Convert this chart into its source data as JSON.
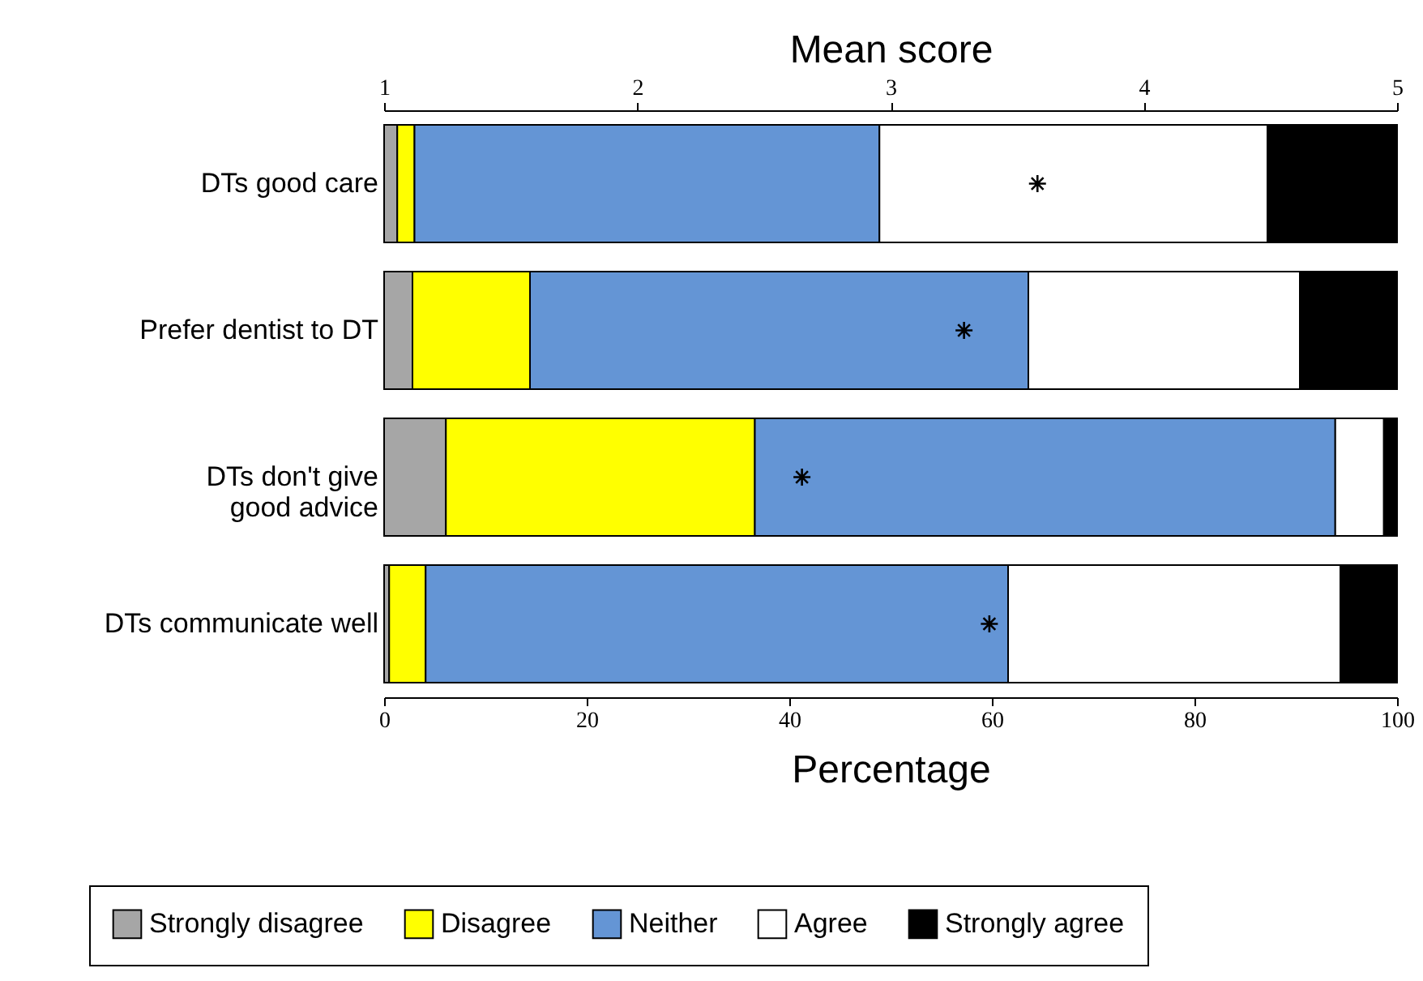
{
  "chart_data": {
    "type": "bar",
    "orientation": "horizontal",
    "stacked": true,
    "categories": [
      "DTs good care",
      "Prefer dentist to DT",
      "DTs don't give good advice",
      "DTs communicate well"
    ],
    "series": [
      {
        "name": "Strongly disagree",
        "color": "#a6a6a6",
        "values": [
          1.3,
          2.8,
          6.1,
          0.5
        ]
      },
      {
        "name": "Disagree",
        "color": "#ffff00",
        "values": [
          1.7,
          11.6,
          30.5,
          3.6
        ]
      },
      {
        "name": "Neither",
        "color": "#6495d5",
        "values": [
          45.9,
          49.2,
          57.3,
          57.5
        ]
      },
      {
        "name": "Agree",
        "color": "#ffffff",
        "values": [
          38.3,
          26.8,
          4.8,
          32.8
        ]
      },
      {
        "name": "Strongly agree",
        "color": "#000000",
        "values": [
          12.8,
          9.6,
          1.3,
          5.6
        ]
      },
      {
        "type": "scatter",
        "axis": "x2",
        "color": "#000000",
        "marker": "cross",
        "values": [
          3.58,
          3.29,
          2.65,
          3.39
        ]
      }
    ],
    "xlabel": "Percentage",
    "xlim": [
      0,
      100
    ],
    "xticks": [
      0,
      20,
      40,
      60,
      80,
      100
    ],
    "x2label": "Mean score",
    "x2lim": [
      1,
      5
    ],
    "x2ticks": [
      1,
      2,
      3,
      4,
      5
    ],
    "legend": "bottom",
    "grid": false
  }
}
